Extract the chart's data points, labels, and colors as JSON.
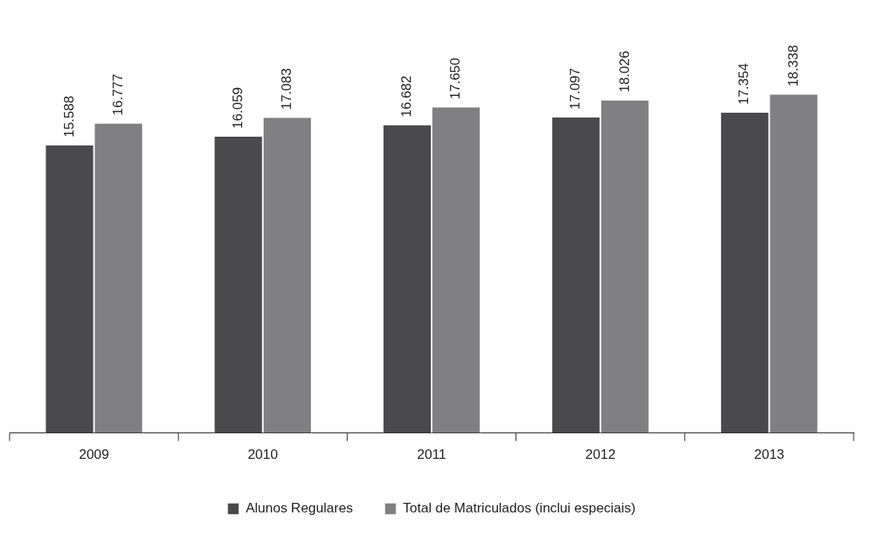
{
  "chart_data": {
    "type": "bar",
    "categories": [
      "2009",
      "2010",
      "2011",
      "2012",
      "2013"
    ],
    "series": [
      {
        "name": "Alunos Regulares",
        "color": "#4a4a4c",
        "values": [
          15588,
          16059,
          16682,
          17097,
          17354
        ],
        "value_labels": [
          "15.588",
          "16.059",
          "16.682",
          "17.097",
          "17.354"
        ]
      },
      {
        "name": "Total de Matriculados (inclui especiais)",
        "color": "#808083",
        "values": [
          16777,
          17083,
          17650,
          18026,
          18338
        ],
        "value_labels": [
          "16.777",
          "17.083",
          "17.650",
          "18.026",
          "18.338"
        ]
      }
    ],
    "legend": "bottom",
    "grid": false
  }
}
